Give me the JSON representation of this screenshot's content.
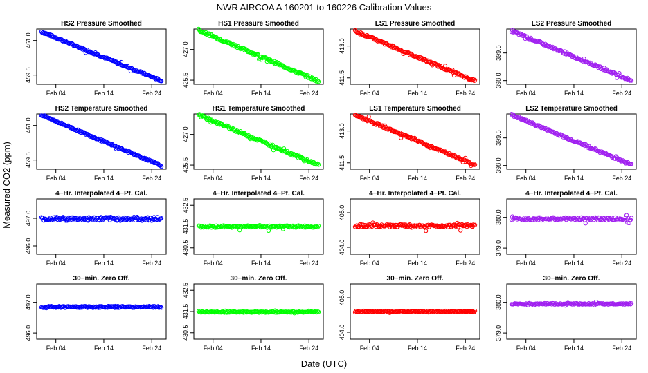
{
  "figure": {
    "title": "NWR   AIRCOA A   160201 to 160226   Calibration Values",
    "xlabel": "Date (UTC)",
    "ylabel": "Measured CO2 (ppm)"
  },
  "colors": {
    "HS2": "#0000ff",
    "HS1": "#00ff00",
    "LS1": "#ff0000",
    "LS2": "#a020f0"
  },
  "chart_data": [
    {
      "type": "scatter",
      "title": "HS2 Pressure Smoothed",
      "color": "#0000ff",
      "xlim": [
        "2016-01-31",
        "2016-02-27"
      ],
      "xticks": [
        "Feb 04",
        "Feb 14",
        "Feb 24"
      ],
      "ylim": [
        459.1,
        461.5
      ],
      "yticks": [
        "459.5",
        "461.0"
      ],
      "x": [
        "2016-02-01",
        "2016-02-26"
      ],
      "y": [
        461.38,
        459.25
      ],
      "noise": 0.04
    },
    {
      "type": "scatter",
      "title": "HS1 Pressure Smoothed",
      "color": "#00ff00",
      "xlim": [
        "2016-01-31",
        "2016-02-27"
      ],
      "xticks": [
        "Feb 04",
        "Feb 14",
        "Feb 24"
      ],
      "ylim": [
        425.3,
        428.0
      ],
      "yticks": [
        "425.5",
        "427.0"
      ],
      "x": [
        "2016-02-01",
        "2016-02-26"
      ],
      "y": [
        427.95,
        425.45
      ],
      "noise": 0.06
    },
    {
      "type": "scatter",
      "title": "LS1 Pressure Smoothed",
      "color": "#ff0000",
      "xlim": [
        "2016-01-31",
        "2016-02-27"
      ],
      "xticks": [
        "Feb 04",
        "Feb 14",
        "Feb 24"
      ],
      "ylim": [
        411.2,
        413.8
      ],
      "yticks": [
        "411.5",
        "413.0"
      ],
      "x": [
        "2016-02-01",
        "2016-02-26"
      ],
      "y": [
        413.7,
        411.35
      ],
      "noise": 0.05
    },
    {
      "type": "scatter",
      "title": "LS2 Pressure Smoothed",
      "color": "#a020f0",
      "xlim": [
        "2016-01-31",
        "2016-02-27"
      ],
      "xticks": [
        "Feb 04",
        "Feb 14",
        "Feb 24"
      ],
      "ylim": [
        397.8,
        400.8
      ],
      "yticks": [
        "398.0",
        "399.5"
      ],
      "x": [
        "2016-02-01",
        "2016-02-26"
      ],
      "y": [
        400.7,
        398.0
      ],
      "noise": 0.06
    },
    {
      "type": "scatter",
      "title": "HS2 Temperature Smoothed",
      "color": "#0000ff",
      "xlim": [
        "2016-01-31",
        "2016-02-27"
      ],
      "xticks": [
        "Feb 04",
        "Feb 14",
        "Feb 24"
      ],
      "ylim": [
        459.1,
        461.5
      ],
      "yticks": [
        "459.5",
        "461.0"
      ],
      "x": [
        "2016-02-01",
        "2016-02-26"
      ],
      "y": [
        461.45,
        459.25
      ],
      "noise": 0.04
    },
    {
      "type": "scatter",
      "title": "HS1 Temperature Smoothed",
      "color": "#00ff00",
      "xlim": [
        "2016-01-31",
        "2016-02-27"
      ],
      "xticks": [
        "Feb 04",
        "Feb 14",
        "Feb 24"
      ],
      "ylim": [
        425.3,
        428.0
      ],
      "yticks": [
        "425.5",
        "427.0"
      ],
      "x": [
        "2016-02-01",
        "2016-02-26"
      ],
      "y": [
        427.95,
        425.5
      ],
      "noise": 0.06
    },
    {
      "type": "scatter",
      "title": "LS1 Temperature Smoothed",
      "color": "#ff0000",
      "xlim": [
        "2016-01-31",
        "2016-02-27"
      ],
      "xticks": [
        "Feb 04",
        "Feb 14",
        "Feb 24"
      ],
      "ylim": [
        411.2,
        413.8
      ],
      "yticks": [
        "411.5",
        "413.0"
      ],
      "x": [
        "2016-02-01",
        "2016-02-26"
      ],
      "y": [
        413.75,
        411.4
      ],
      "noise": 0.05
    },
    {
      "type": "scatter",
      "title": "LS2 Temperature Smoothed",
      "color": "#a020f0",
      "xlim": [
        "2016-01-31",
        "2016-02-27"
      ],
      "xticks": [
        "Feb 04",
        "Feb 14",
        "Feb 24"
      ],
      "ylim": [
        397.8,
        400.8
      ],
      "yticks": [
        "398.0",
        "399.5"
      ],
      "x": [
        "2016-02-01",
        "2016-02-26"
      ],
      "y": [
        400.75,
        398.05
      ],
      "noise": 0.06
    },
    {
      "type": "scatter",
      "title": "4−Hr. Interpolated 4−Pt. Cal.",
      "color": "#0000ff",
      "xlim": [
        "2016-01-31",
        "2016-02-27"
      ],
      "xticks": [
        "Feb 04",
        "Feb 14",
        "Feb 24"
      ],
      "ylim": [
        495.7,
        497.7
      ],
      "yticks": [
        "496.0",
        "497.0"
      ],
      "x": [
        "2016-02-01",
        "2016-02-26"
      ],
      "y": [
        496.98,
        496.98
      ],
      "noise": 0.07
    },
    {
      "type": "scatter",
      "title": "4−Hr. Interpolated 4−Pt. Cal.",
      "color": "#00ff00",
      "xlim": [
        "2016-01-31",
        "2016-02-27"
      ],
      "xticks": [
        "Feb 04",
        "Feb 14",
        "Feb 24"
      ],
      "ylim": [
        430.2,
        432.8
      ],
      "yticks": [
        "430.5",
        "431.5",
        "432.5"
      ],
      "x": [
        "2016-02-01",
        "2016-02-26"
      ],
      "y": [
        431.5,
        431.5
      ],
      "noise": 0.05
    },
    {
      "type": "scatter",
      "title": "4−Hr. Interpolated 4−Pt. Cal.",
      "color": "#ff0000",
      "xlim": [
        "2016-01-31",
        "2016-02-27"
      ],
      "xticks": [
        "Feb 04",
        "Feb 14",
        "Feb 24"
      ],
      "ylim": [
        403.8,
        405.4
      ],
      "yticks": [
        "404.0",
        "405.0"
      ],
      "x": [
        "2016-02-01",
        "2016-02-26"
      ],
      "y": [
        404.62,
        404.62
      ],
      "noise": 0.04
    },
    {
      "type": "scatter",
      "title": "4−Hr. Interpolated 4−Pt. Cal.",
      "color": "#a020f0",
      "xlim": [
        "2016-01-31",
        "2016-02-27"
      ],
      "xticks": [
        "Feb 04",
        "Feb 14",
        "Feb 24"
      ],
      "ylim": [
        378.8,
        380.6
      ],
      "yticks": [
        "379.0",
        "380.0"
      ],
      "x": [
        "2016-02-01",
        "2016-02-26"
      ],
      "y": [
        379.95,
        379.95
      ],
      "noise": 0.05
    },
    {
      "type": "scatter",
      "title": "30−min. Zero Off.",
      "color": "#0000ff",
      "xlim": [
        "2016-01-31",
        "2016-02-27"
      ],
      "xticks": [
        "Feb 04",
        "Feb 14",
        "Feb 24"
      ],
      "ylim": [
        495.8,
        497.6
      ],
      "yticks": [
        "496.0",
        "497.0"
      ],
      "x": [
        "2016-02-01",
        "2016-02-26"
      ],
      "y": [
        496.85,
        496.85
      ],
      "noise": 0.03
    },
    {
      "type": "scatter",
      "title": "30−min. Zero Off.",
      "color": "#00ff00",
      "xlim": [
        "2016-01-31",
        "2016-02-27"
      ],
      "xticks": [
        "Feb 04",
        "Feb 14",
        "Feb 24"
      ],
      "ylim": [
        430.2,
        432.8
      ],
      "yticks": [
        "430.5",
        "431.5",
        "432.5"
      ],
      "x": [
        "2016-02-01",
        "2016-02-26"
      ],
      "y": [
        431.48,
        431.48
      ],
      "noise": 0.03
    },
    {
      "type": "scatter",
      "title": "30−min. Zero Off.",
      "color": "#ff0000",
      "xlim": [
        "2016-01-31",
        "2016-02-27"
      ],
      "xticks": [
        "Feb 04",
        "Feb 14",
        "Feb 24"
      ],
      "ylim": [
        403.8,
        405.4
      ],
      "yticks": [
        "404.0",
        "405.0"
      ],
      "x": [
        "2016-02-01",
        "2016-02-26"
      ],
      "y": [
        404.6,
        404.6
      ],
      "noise": 0.02
    },
    {
      "type": "scatter",
      "title": "30−min. Zero Off.",
      "color": "#a020f0",
      "xlim": [
        "2016-01-31",
        "2016-02-27"
      ],
      "xticks": [
        "Feb 04",
        "Feb 14",
        "Feb 24"
      ],
      "ylim": [
        378.8,
        380.6
      ],
      "yticks": [
        "379.0",
        "380.0"
      ],
      "x": [
        "2016-02-01",
        "2016-02-26"
      ],
      "y": [
        379.95,
        379.95
      ],
      "noise": 0.02
    }
  ]
}
